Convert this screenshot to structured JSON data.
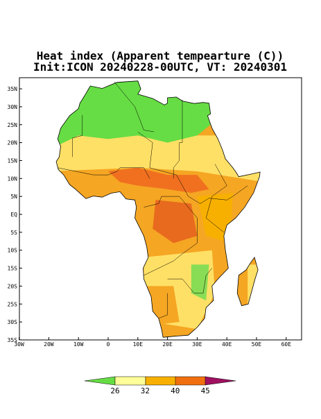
{
  "map": {
    "title": "Heat index (Apparent tempearture (C))",
    "subtitle": "Init:ICON 20240228-00UTC, VT: 20240301",
    "lat_ticks": [
      "35N",
      "30N",
      "25N",
      "20N",
      "15N",
      "10N",
      "5N",
      "EQ",
      "5S",
      "10S",
      "15S",
      "20S",
      "25S",
      "30S",
      "35S"
    ],
    "lon_ticks": [
      "30W",
      "20W",
      "10W",
      "0",
      "10E",
      "20E",
      "30E",
      "40E",
      "50E",
      "60E"
    ],
    "colorbar": {
      "labels": [
        "26",
        "32",
        "40",
        "45"
      ]
    }
  }
}
